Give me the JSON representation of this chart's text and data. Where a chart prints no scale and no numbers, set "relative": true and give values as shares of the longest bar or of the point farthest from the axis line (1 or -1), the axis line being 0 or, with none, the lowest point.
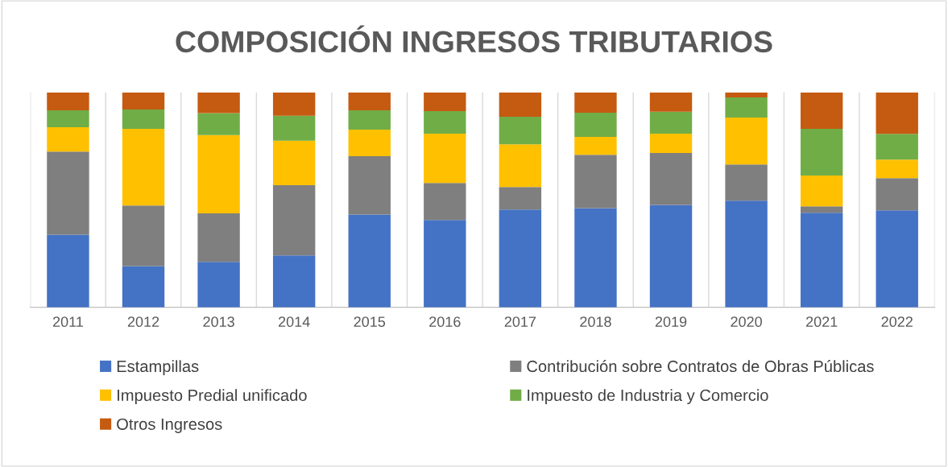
{
  "chart_data": {
    "type": "bar",
    "title": "COMPOSICIÓN INGRESOS TRIBUTARIOS",
    "relative": true,
    "stacked": true,
    "grid": "x",
    "legend": "bottom",
    "categories": [
      "2011",
      "2012",
      "2013",
      "2014",
      "2015",
      "2016",
      "2017",
      "2018",
      "2019",
      "2020",
      "2021",
      "2022"
    ],
    "series": [
      {
        "name": "Estampillas",
        "color": "#4472c4",
        "values": [
          0.338,
          0.192,
          0.211,
          0.241,
          0.432,
          0.406,
          0.455,
          0.462,
          0.477,
          0.496,
          0.44,
          0.451
        ]
      },
      {
        "name": "Contribución sobre Contratos de Obras Públicas",
        "color": "#7f7f7f",
        "values": [
          0.387,
          0.282,
          0.226,
          0.327,
          0.271,
          0.173,
          0.105,
          0.248,
          0.241,
          0.169,
          0.03,
          0.15
        ]
      },
      {
        "name": "Impuesto Predial unificado",
        "color": "#ffc000",
        "values": [
          0.113,
          0.357,
          0.365,
          0.207,
          0.124,
          0.229,
          0.199,
          0.083,
          0.09,
          0.218,
          0.143,
          0.086
        ]
      },
      {
        "name": "Impuesto de Industria y Comercio",
        "color": "#70ad47",
        "values": [
          0.079,
          0.09,
          0.102,
          0.117,
          0.09,
          0.105,
          0.128,
          0.113,
          0.102,
          0.094,
          0.218,
          0.12
        ]
      },
      {
        "name": "Otros Ingresos",
        "color": "#c55a11",
        "values": [
          0.083,
          0.079,
          0.096,
          0.108,
          0.083,
          0.087,
          0.113,
          0.094,
          0.09,
          0.023,
          0.169,
          0.193
        ]
      }
    ]
  }
}
